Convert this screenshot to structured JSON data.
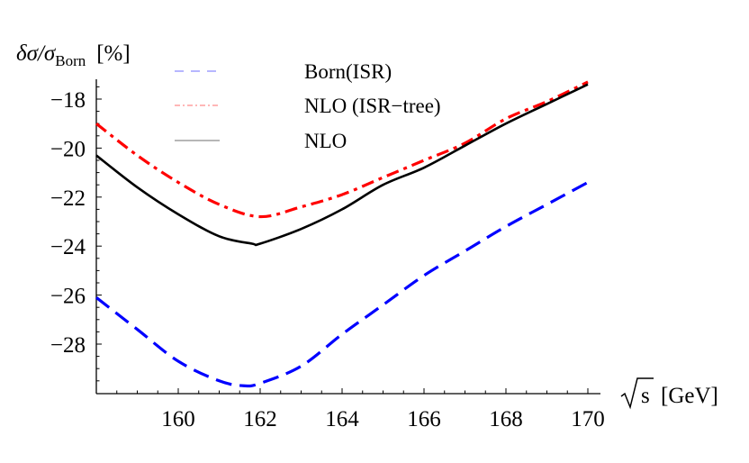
{
  "chart_data": {
    "type": "line",
    "title": "",
    "ylabel": "δσ/σ_Born [%]",
    "ylabel_parts": {
      "main": "δσ/σ",
      "sub": "Born",
      "unit": "[%]"
    },
    "xlabel": "√s [GeV]",
    "xlabel_parts": {
      "root": "s",
      "unit": "[GeV]"
    },
    "xlim": [
      158,
      170.3
    ],
    "ylim": [
      -30,
      -16.8
    ],
    "x_ticks": [
      160,
      162,
      164,
      166,
      168,
      170
    ],
    "x_tick_labels": [
      "160",
      "162",
      "164",
      "166",
      "168",
      "170"
    ],
    "y_ticks": [
      -18,
      -20,
      -22,
      -24,
      -26,
      -28
    ],
    "y_tick_labels": [
      "−18",
      "−20",
      "−22",
      "−24",
      "−26",
      "−28"
    ],
    "grid": false,
    "legend_position": "upper-center",
    "series": [
      {
        "name": "Born(ISR)",
        "color": "#0000ff",
        "style": "dashed",
        "x": [
          158,
          159,
          160,
          161,
          161.6,
          162,
          163,
          164,
          165,
          166,
          167,
          168,
          169,
          170
        ],
        "values": [
          -26.1,
          -27.4,
          -28.7,
          -29.5,
          -29.7,
          -29.6,
          -28.9,
          -27.6,
          -26.4,
          -25.2,
          -24.2,
          -23.2,
          -22.3,
          -21.4
        ]
      },
      {
        "name": "NLO (ISR−tree)",
        "color": "#ff0000",
        "style": "dash-dot",
        "x": [
          158,
          159,
          160,
          161,
          162,
          163,
          164,
          165,
          166,
          167,
          168,
          169,
          170
        ],
        "values": [
          -19.0,
          -20.3,
          -21.4,
          -22.3,
          -22.8,
          -22.4,
          -21.9,
          -21.2,
          -20.5,
          -19.8,
          -18.8,
          -18.1,
          -17.3
        ]
      },
      {
        "name": "NLO",
        "color": "#000000",
        "style": "solid",
        "x": [
          158,
          159,
          160,
          161,
          161.8,
          162,
          163,
          164,
          165,
          166,
          167,
          168,
          169,
          170
        ],
        "values": [
          -20.3,
          -21.6,
          -22.7,
          -23.6,
          -23.9,
          -23.9,
          -23.3,
          -22.5,
          -21.5,
          -20.8,
          -19.9,
          -19.0,
          -18.2,
          -17.4
        ]
      }
    ]
  }
}
